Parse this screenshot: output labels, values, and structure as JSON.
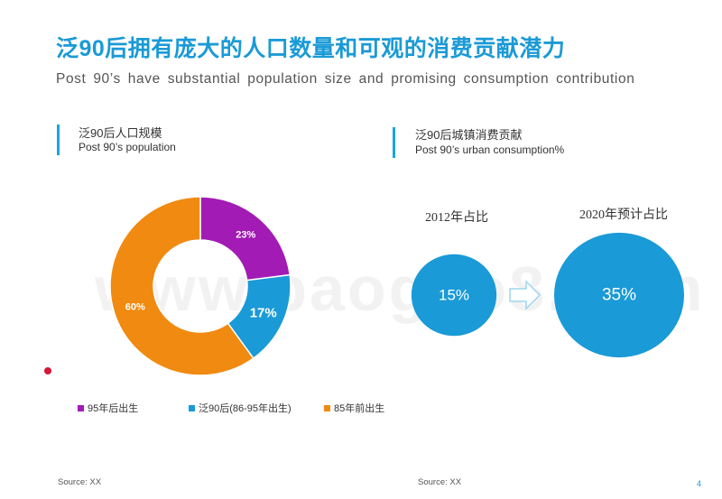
{
  "title": "泛90后拥有庞大的人口数量和可观的消费贡献潜力",
  "subtitle": "Post 90’s have substantial population size and promising consumption contribution",
  "watermark": "www.baogao8.com",
  "left_section": {
    "title": "泛90后人口规模",
    "subtitle": "Post 90’s population"
  },
  "right_section": {
    "title": "泛90后城镇消费贡献",
    "subtitle": "Post 90’s urban consumption%"
  },
  "source_left": "Source: XX",
  "source_right": "Source: XX",
  "page_number": "4",
  "colors": {
    "accent": "#1a9ad6",
    "purple": "#a21bb5",
    "blue": "#1a9ad6",
    "orange": "#f08a10"
  },
  "chart_data": [
    {
      "type": "pie",
      "title": "泛90后人口规模",
      "labels": [
        "95年后出生",
        "泛90后(86-95年出生)",
        "85年前出生"
      ],
      "values": [
        23,
        17,
        60
      ],
      "value_labels": [
        "23%",
        "17%",
        "60%"
      ],
      "colors": [
        "#a21bb5",
        "#1a9ad6",
        "#f08a10"
      ],
      "legend": "bottom"
    },
    {
      "type": "bubble",
      "title": "泛90后城镇消费贡献",
      "categories": [
        "2012年占比",
        "2020年预计占比"
      ],
      "values": [
        15,
        35
      ],
      "value_labels": [
        "15%",
        "35%"
      ],
      "color": "#1a9ad6"
    }
  ]
}
